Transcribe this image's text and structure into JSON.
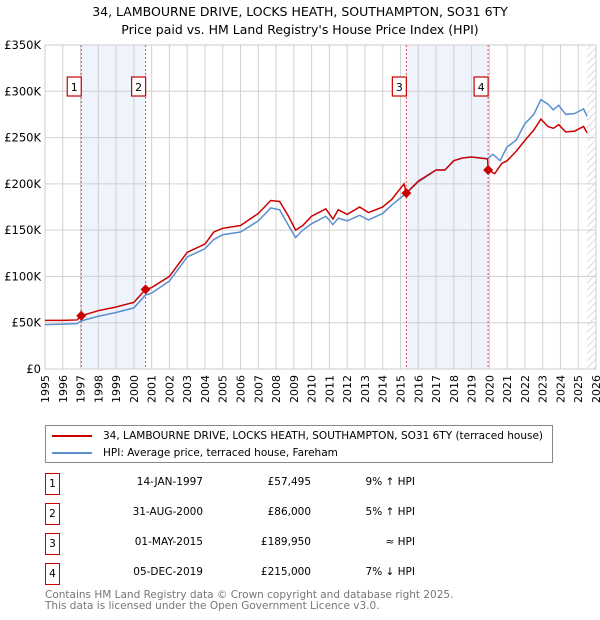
{
  "title": "34, LAMBOURNE DRIVE, LOCKS HEATH, SOUTHAMPTON, SO31 6TY",
  "subtitle": "Price paid vs. HM Land Registry's House Price Index (HPI)",
  "chart_data": {
    "type": "line",
    "xlim": [
      1995,
      2026
    ],
    "ylim": [
      0,
      350000
    ],
    "yticks": [
      0,
      50000,
      100000,
      150000,
      200000,
      250000,
      300000,
      350000
    ],
    "ytick_labels": [
      "£0",
      "£50K",
      "£100K",
      "£150K",
      "£200K",
      "£250K",
      "£300K",
      "£350K"
    ],
    "xticks": [
      1995,
      1996,
      1997,
      1998,
      1999,
      2000,
      2001,
      2002,
      2003,
      2004,
      2005,
      2006,
      2007,
      2008,
      2009,
      2010,
      2011,
      2012,
      2013,
      2014,
      2015,
      2016,
      2017,
      2018,
      2019,
      2020,
      2021,
      2022,
      2023,
      2024,
      2025,
      2026
    ],
    "grid": true,
    "series": [
      {
        "name": "34, LAMBOURNE DRIVE, LOCKS HEATH, SOUTHAMPTON, SO31 6TY (terraced house)",
        "color": "#cc0000",
        "x": [
          1995,
          1996,
          1996.8,
          1997.04,
          1998,
          1999,
          2000,
          2000.66,
          2001,
          2002,
          2003,
          2004,
          2004.5,
          2005,
          2006,
          2007,
          2007.7,
          2008.2,
          2008.7,
          2009.1,
          2009.5,
          2010,
          2010.8,
          2011.2,
          2011.5,
          2012,
          2012.7,
          2013.2,
          2014,
          2014.5,
          2015.2,
          2015.33,
          2016,
          2017,
          2017.5,
          2018,
          2018.5,
          2019,
          2019.9,
          2019.93,
          2020.3,
          2020.7,
          2021,
          2021.5,
          2022,
          2022.5,
          2022.9,
          2023.3,
          2023.6,
          2023.9,
          2024.3,
          2024.8,
          2025.3,
          2025.5
        ],
        "y": [
          52500,
          52500,
          53000,
          57495,
          63000,
          67000,
          72000,
          86000,
          88000,
          100000,
          126000,
          135000,
          148000,
          152000,
          155000,
          168000,
          182000,
          181000,
          165000,
          150000,
          155000,
          165000,
          173000,
          162000,
          172000,
          167000,
          175000,
          169000,
          175000,
          183000,
          200000,
          189950,
          203000,
          215000,
          215000,
          225000,
          228000,
          229000,
          227000,
          215000,
          211000,
          222000,
          225000,
          235000,
          247000,
          258000,
          270000,
          262000,
          260000,
          264000,
          256000,
          257000,
          262000,
          255000
        ]
      },
      {
        "name": "HPI: Average price, terraced house, Fareham",
        "color": "#5b8fd0",
        "x": [
          1995,
          1996,
          1996.8,
          1997.04,
          1998,
          1999,
          2000,
          2000.66,
          2001,
          2002,
          2003,
          2004,
          2004.5,
          2005,
          2006,
          2007,
          2007.7,
          2008.2,
          2008.7,
          2009.1,
          2009.5,
          2010,
          2010.8,
          2011.2,
          2011.5,
          2012,
          2012.7,
          2013.2,
          2014,
          2014.5,
          2015.33,
          2016,
          2017,
          2017.5,
          2018,
          2018.5,
          2019,
          2019.9,
          2020.2,
          2020.6,
          2021,
          2021.5,
          2022,
          2022.5,
          2022.9,
          2023.3,
          2023.6,
          2023.9,
          2024.3,
          2024.8,
          2025.3,
          2025.5
        ],
        "y": [
          48000,
          48500,
          49000,
          52000,
          57000,
          61000,
          66000,
          80000,
          82000,
          95000,
          121000,
          130000,
          140000,
          145000,
          148000,
          160000,
          174000,
          172000,
          155000,
          142000,
          150000,
          157000,
          165000,
          156000,
          163000,
          160000,
          166000,
          161000,
          168000,
          177000,
          190000,
          202000,
          215000,
          215000,
          225000,
          228000,
          229000,
          227000,
          232000,
          225000,
          240000,
          247000,
          265000,
          275000,
          291000,
          286000,
          280000,
          285000,
          275000,
          276000,
          281000,
          273000
        ]
      }
    ],
    "sales": [
      {
        "id": "1",
        "date": "14-JAN-1997",
        "x": 1997.04,
        "price": 57495,
        "price_label": "£57,495",
        "hpi": "9% ↑ HPI"
      },
      {
        "id": "2",
        "date": "31-AUG-2000",
        "x": 2000.66,
        "price": 86000,
        "price_label": "£86,000",
        "hpi": "5% ↑ HPI"
      },
      {
        "id": "3",
        "date": "01-MAY-2015",
        "x": 2015.33,
        "price": 189950,
        "price_label": "£189,950",
        "hpi": "≈ HPI"
      },
      {
        "id": "4",
        "date": "05-DEC-2019",
        "x": 2019.93,
        "price": 215000,
        "price_label": "£215,000",
        "hpi": "7% ↓ HPI"
      }
    ],
    "shaded_ranges": [
      [
        1997.04,
        2000.66
      ],
      [
        2015.33,
        2019.93
      ]
    ],
    "forecast_hatch_from": 2025.5
  },
  "legend": {
    "red": "34, LAMBOURNE DRIVE, LOCKS HEATH, SOUTHAMPTON, SO31 6TY (terraced house)",
    "blue": "HPI: Average price, terraced house, Fareham"
  },
  "footer": {
    "line1": "Contains HM Land Registry data © Crown copyright and database right 2025.",
    "line2": "This data is licensed under the Open Government Licence v3.0."
  }
}
